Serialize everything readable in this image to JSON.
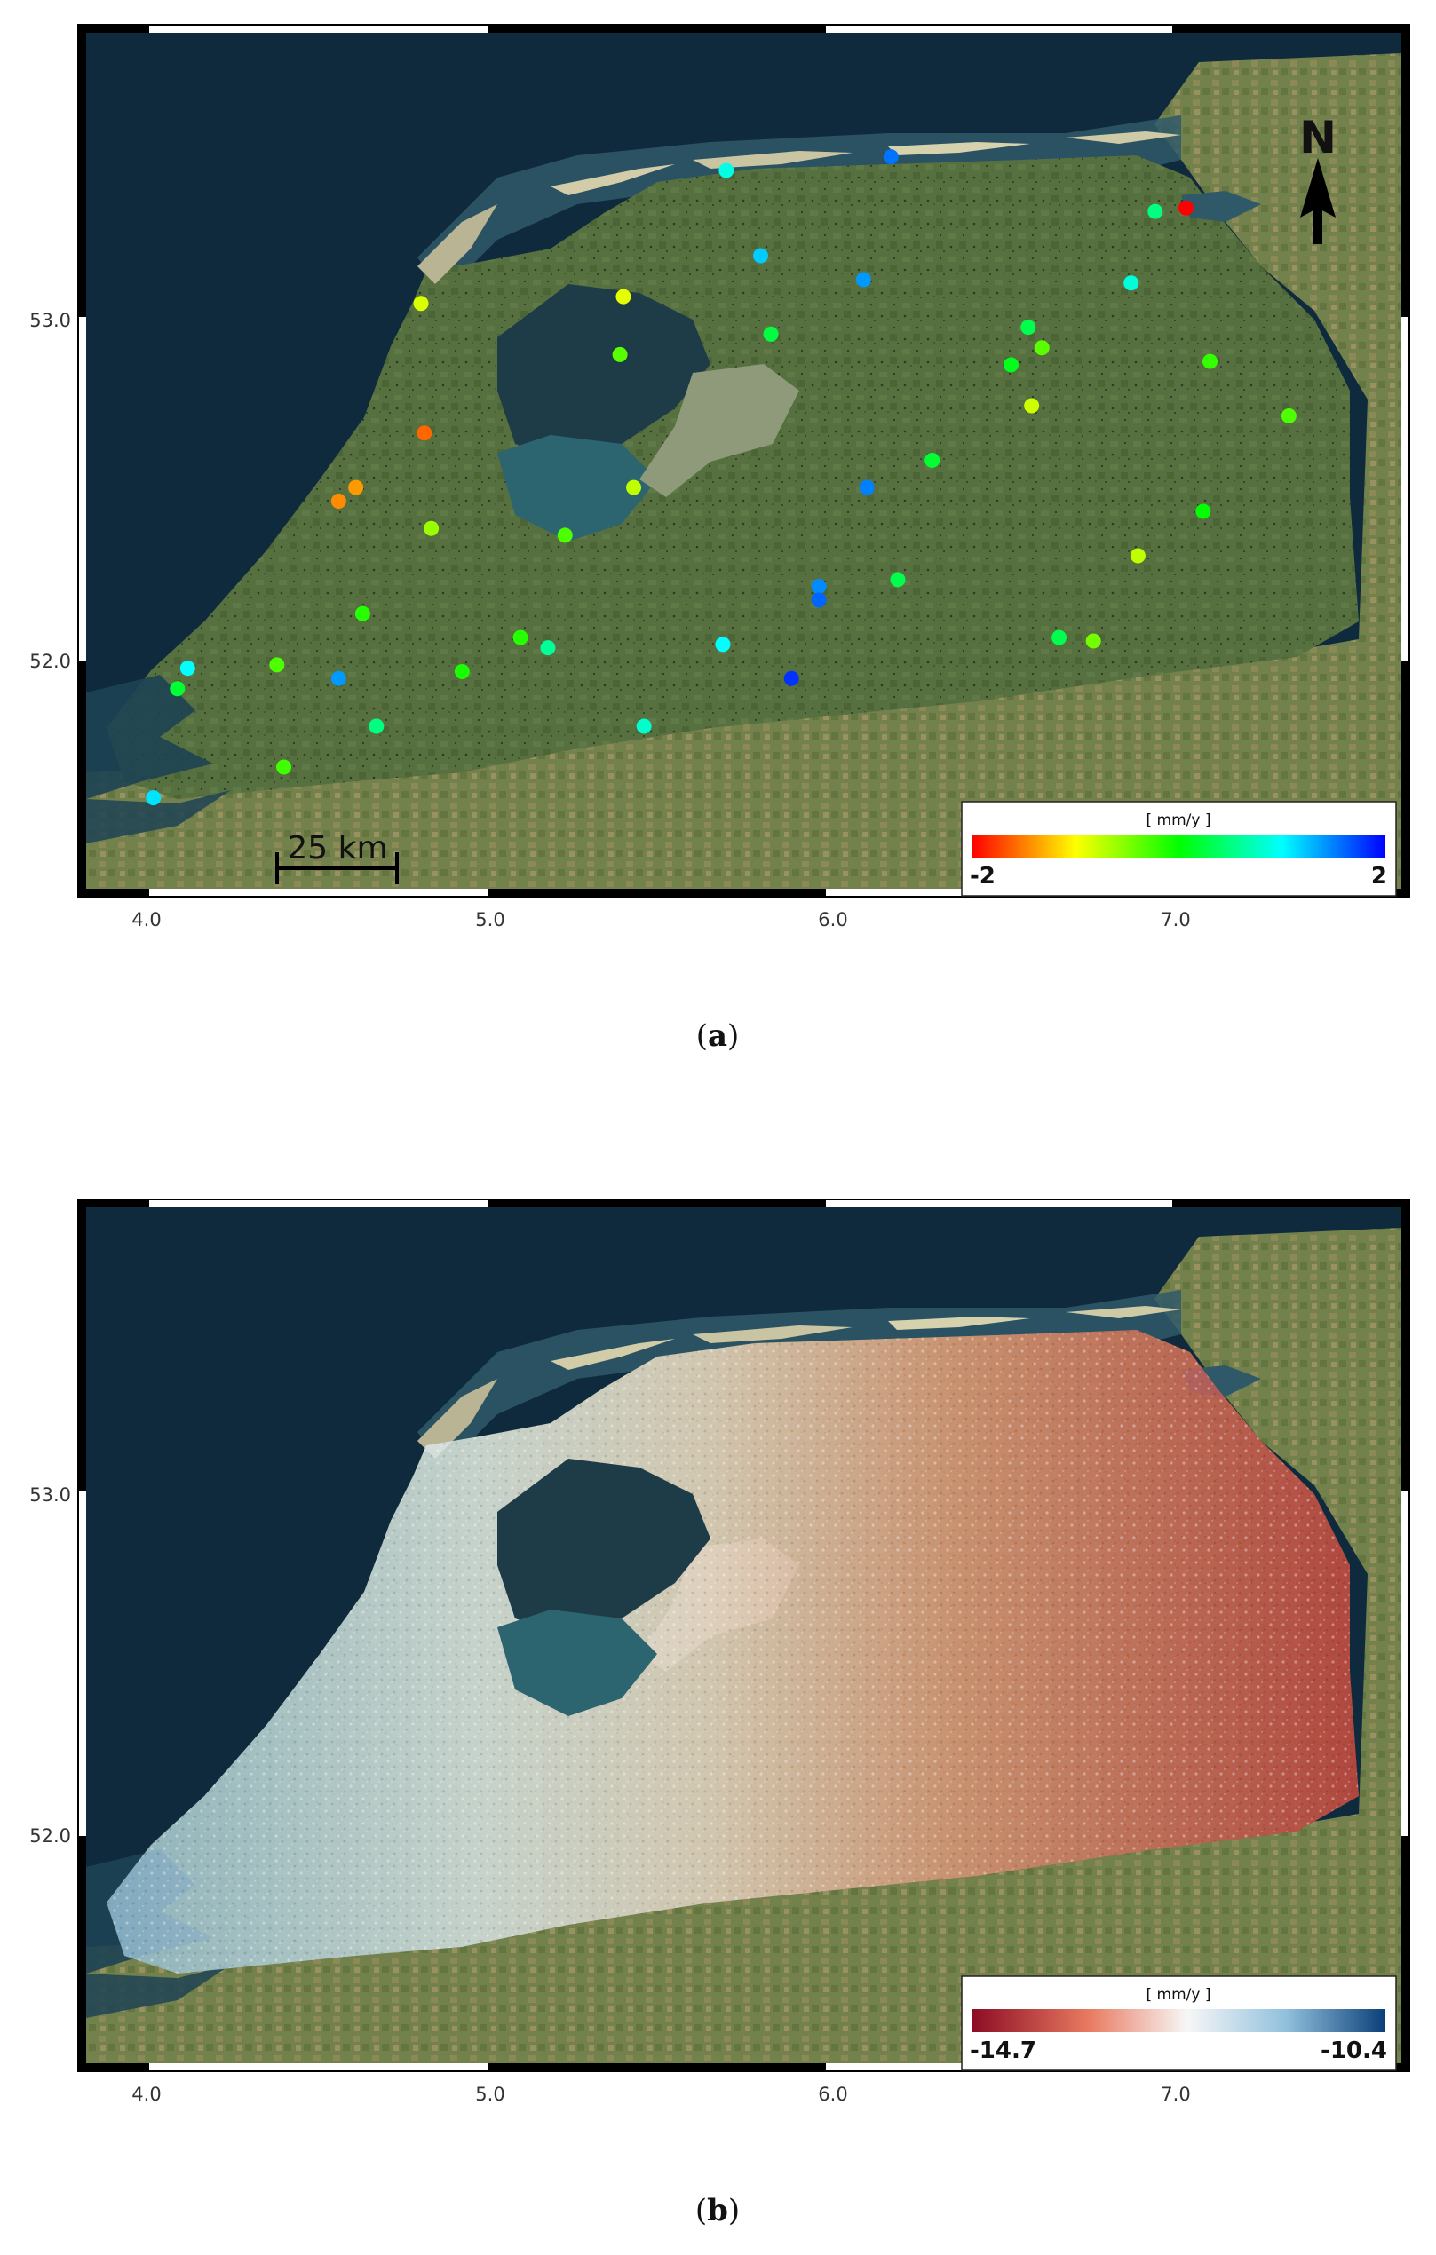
{
  "panel_a": {
    "caption": "(a)",
    "caption_letter": "a",
    "x_ticks": [
      "4.0",
      "5.0",
      "6.0",
      "7.0"
    ],
    "y_ticks": [
      "53.0",
      "52.0"
    ],
    "legend": {
      "title": "[ mm/y ]",
      "min_label": "-2",
      "max_label": "2",
      "min": -2,
      "max": 2,
      "colors": [
        "#ff0000",
        "#ffff00",
        "#00ff00",
        "#00ffff",
        "#0000ff"
      ]
    },
    "scale_bar_label": "25 km",
    "north_label": "N",
    "stations": [
      {
        "lon": 5.69,
        "lat": 53.44,
        "v": 0.9
      },
      {
        "lon": 6.17,
        "lat": 53.48,
        "v": 1.55
      },
      {
        "lon": 7.03,
        "lat": 53.33,
        "v": -2.0
      },
      {
        "lon": 6.94,
        "lat": 53.32,
        "v": 0.5
      },
      {
        "lon": 4.8,
        "lat": 53.05,
        "v": -0.85
      },
      {
        "lon": 5.39,
        "lat": 53.07,
        "v": -0.9
      },
      {
        "lon": 5.79,
        "lat": 53.19,
        "v": 1.2
      },
      {
        "lon": 6.09,
        "lat": 53.12,
        "v": 1.4
      },
      {
        "lon": 6.87,
        "lat": 53.11,
        "v": 0.85
      },
      {
        "lon": 5.38,
        "lat": 52.9,
        "v": -0.35
      },
      {
        "lon": 5.82,
        "lat": 52.96,
        "v": 0.25
      },
      {
        "lon": 6.57,
        "lat": 52.98,
        "v": 0.3
      },
      {
        "lon": 6.61,
        "lat": 52.92,
        "v": -0.35
      },
      {
        "lon": 6.52,
        "lat": 52.87,
        "v": 0.1
      },
      {
        "lon": 7.1,
        "lat": 52.88,
        "v": -0.2
      },
      {
        "lon": 6.58,
        "lat": 52.75,
        "v": -0.8
      },
      {
        "lon": 7.33,
        "lat": 52.72,
        "v": -0.3
      },
      {
        "lon": 4.81,
        "lat": 52.67,
        "v": -1.6
      },
      {
        "lon": 4.61,
        "lat": 52.51,
        "v": -1.4
      },
      {
        "lon": 4.56,
        "lat": 52.47,
        "v": -1.45
      },
      {
        "lon": 5.42,
        "lat": 52.51,
        "v": -0.75
      },
      {
        "lon": 6.1,
        "lat": 52.51,
        "v": 1.5
      },
      {
        "lon": 6.29,
        "lat": 52.59,
        "v": 0.2
      },
      {
        "lon": 7.08,
        "lat": 52.44,
        "v": 0.0
      },
      {
        "lon": 4.83,
        "lat": 52.39,
        "v": -0.6
      },
      {
        "lon": 5.22,
        "lat": 52.37,
        "v": -0.3
      },
      {
        "lon": 6.89,
        "lat": 52.31,
        "v": -0.75
      },
      {
        "lon": 5.96,
        "lat": 52.22,
        "v": 1.45
      },
      {
        "lon": 5.96,
        "lat": 52.18,
        "v": 1.6
      },
      {
        "lon": 6.19,
        "lat": 52.24,
        "v": 0.3
      },
      {
        "lon": 4.63,
        "lat": 52.14,
        "v": -0.15
      },
      {
        "lon": 5.09,
        "lat": 52.07,
        "v": -0.15
      },
      {
        "lon": 5.17,
        "lat": 52.04,
        "v": 0.6
      },
      {
        "lon": 6.66,
        "lat": 52.07,
        "v": 0.3
      },
      {
        "lon": 6.76,
        "lat": 52.06,
        "v": -0.45
      },
      {
        "lon": 5.68,
        "lat": 52.05,
        "v": 1.0
      },
      {
        "lon": 4.12,
        "lat": 51.98,
        "v": 1.0
      },
      {
        "lon": 4.38,
        "lat": 51.99,
        "v": -0.3
      },
      {
        "lon": 4.56,
        "lat": 51.95,
        "v": 1.4
      },
      {
        "lon": 4.92,
        "lat": 51.97,
        "v": -0.1
      },
      {
        "lon": 5.88,
        "lat": 51.95,
        "v": 1.8
      },
      {
        "lon": 4.09,
        "lat": 51.92,
        "v": 0.2
      },
      {
        "lon": 4.67,
        "lat": 51.81,
        "v": 0.5
      },
      {
        "lon": 5.45,
        "lat": 51.81,
        "v": 0.8
      },
      {
        "lon": 4.4,
        "lat": 51.69,
        "v": -0.25
      },
      {
        "lon": 4.02,
        "lat": 51.6,
        "v": 1.1
      }
    ]
  },
  "panel_b": {
    "caption": "(b)",
    "caption_letter": "b",
    "x_ticks": [
      "4.0",
      "5.0",
      "6.0",
      "7.0"
    ],
    "y_ticks": [
      "53.0",
      "52.0"
    ],
    "legend": {
      "title": "[ mm/y ]",
      "min_label": "-14.7",
      "max_label": "-10.4",
      "min": -14.7,
      "max": -10.4,
      "colors": [
        "#8c0d25",
        "#e8795f",
        "#f7f7f7",
        "#91c0dc",
        "#0b3f78"
      ]
    }
  }
}
